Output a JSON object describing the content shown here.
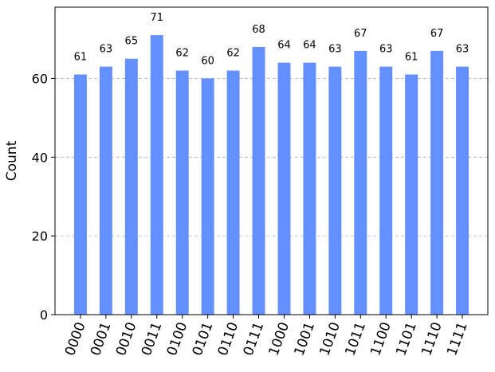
{
  "chart_data": {
    "type": "bar",
    "ylabel": "Count",
    "categories": [
      "0000",
      "0001",
      "0010",
      "0011",
      "0100",
      "0101",
      "0110",
      "0111",
      "1000",
      "1001",
      "1010",
      "1011",
      "1100",
      "1101",
      "1110",
      "1111"
    ],
    "values": [
      61,
      63,
      65,
      71,
      62,
      60,
      62,
      68,
      64,
      64,
      63,
      67,
      63,
      61,
      67,
      63
    ],
    "color": "#648fff",
    "ylim": [
      0,
      78.1
    ],
    "yticks": [
      0,
      20,
      40,
      60
    ],
    "grid": true
  }
}
